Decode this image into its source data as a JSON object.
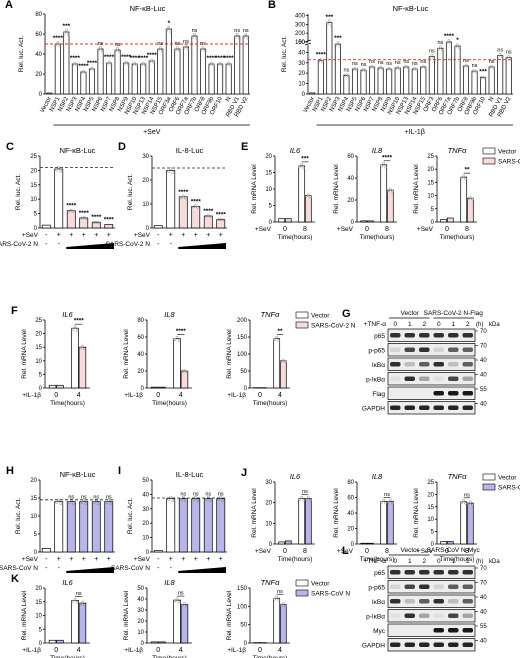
{
  "colors": {
    "vector_fill": "#ffffff",
    "covid2_fill": "#f7dada",
    "covid1_fill": "#b7b5ea",
    "dash_red": "#d9302c",
    "dash_black": "#222222",
    "dot": "#888888"
  },
  "chart_data": [
    {
      "id": "A",
      "panel": "A",
      "type": "bar",
      "title": "NF-κB-Luc",
      "ylabel": "Rel. luc. Act.",
      "ylim": [
        0,
        80
      ],
      "yticks": [
        "0",
        "20",
        "40",
        "60",
        "80"
      ],
      "categories": [
        "Vector",
        "NSP1",
        "NSP2",
        "NSP3",
        "NSP4",
        "NSP5",
        "NSP6",
        "NSP7",
        "NSP8",
        "NSP9",
        "NSP10",
        "NSP13",
        "NSP14",
        "NSP15",
        "ORF3a",
        "ORF6",
        "ORF7a",
        "ORF7b",
        "ORF8",
        "ORF9b",
        "ORF10",
        "N",
        "RBD V1",
        "RBD V2"
      ],
      "values": [
        1,
        50,
        62,
        30,
        22,
        25,
        45,
        31,
        44,
        31,
        30,
        30,
        33,
        45,
        65,
        45,
        47,
        58,
        45,
        30,
        30,
        30,
        58,
        58
      ],
      "sig": [
        "",
        "****",
        "***",
        "****",
        "****",
        "****",
        "ns",
        "****",
        "ns",
        "****",
        "****",
        "****",
        "****",
        "ns",
        "*",
        "ns",
        "ns",
        "ns",
        "ns",
        "****",
        "****",
        "****",
        "ns",
        "ns"
      ],
      "dashline": 50,
      "dashcolor": "red",
      "xlabel_group": "+SeV"
    },
    {
      "id": "B",
      "panel": "B",
      "type": "bar",
      "title": "NF-κB-Luc",
      "ylabel": "Rel. luc. Act.",
      "broken_axis": true,
      "yticks": [
        "0",
        "10",
        "20",
        "30",
        "40",
        "50",
        "100",
        "200",
        "300",
        "400"
      ],
      "categories": [
        "Vector",
        "NSP1",
        "NSP2",
        "NSP3",
        "NSP4",
        "NSP5",
        "NSP6",
        "NSP7",
        "NSP8",
        "NSP9",
        "NSP10",
        "NSP13",
        "NSP14",
        "NSP15",
        "ORF3",
        "ORF6",
        "ORF7a",
        "ORF7b",
        "ORF8",
        "ORF9b",
        "ORF10",
        "N",
        "RBD V1",
        "RBD V2"
      ],
      "values": [
        1,
        32,
        320,
        48,
        18,
        24,
        23,
        26,
        25,
        24,
        25,
        26,
        24,
        26,
        36,
        44,
        50,
        54,
        27,
        22,
        16,
        26,
        37,
        35
      ],
      "sig": [
        "",
        "****",
        "***",
        "***",
        "ns",
        "ns",
        "ns",
        "ns",
        "ns",
        "ns",
        "ns",
        "ns",
        "ns",
        "ns",
        "ns",
        "ns",
        "****",
        "*",
        "ns",
        "ns",
        "***",
        "ns",
        "ns",
        "ns"
      ],
      "dashline": 33,
      "dashcolor": "red",
      "xlabel_group": "+IL-1β"
    },
    {
      "id": "C",
      "panel": "C",
      "type": "bar",
      "title": "NF-κB-Luc",
      "ylabel": "Rel. luc. Act.",
      "ylim": [
        0,
        25
      ],
      "yticks": [
        "0",
        "5",
        "10",
        "15",
        "20",
        "25"
      ],
      "categories": [
        "1",
        "2",
        "3",
        "4",
        "5",
        "6"
      ],
      "values": [
        1,
        20.5,
        6,
        3.5,
        2,
        1.2
      ],
      "fill": [
        "v",
        "v",
        "c",
        "c",
        "c",
        "c"
      ],
      "sig": [
        "",
        "",
        "****",
        "****",
        "****",
        "****"
      ],
      "dashline": 21,
      "dashcolor": "black",
      "rows": [
        {
          "label": "+SeV",
          "marks": [
            "-",
            "+",
            "+",
            "+",
            "+",
            "+"
          ]
        },
        {
          "label": "SARS-CoV-2 N",
          "marks": [
            "-",
            "-",
            "+",
            "+",
            "+",
            "+"
          ]
        }
      ]
    },
    {
      "id": "D",
      "panel": "D",
      "type": "bar",
      "title": "IL-8-Luc",
      "ylabel": "Rel. luc. Act.",
      "ylim": [
        0,
        30
      ],
      "yticks": [
        "0",
        "10",
        "20",
        "30"
      ],
      "categories": [
        "1",
        "2",
        "3",
        "4",
        "5",
        "6"
      ],
      "values": [
        1,
        24,
        13,
        9,
        5,
        3.5
      ],
      "fill": [
        "v",
        "v",
        "c",
        "c",
        "c",
        "c"
      ],
      "sig": [
        "",
        "",
        "****",
        "****",
        "****",
        "****"
      ],
      "dashline": 25,
      "dashcolor": "black",
      "rows": [
        {
          "label": "+SeV",
          "marks": [
            "-",
            "+",
            "+",
            "+",
            "+",
            "+"
          ]
        },
        {
          "label": "SARS-CoV-2 N",
          "marks": [
            "-",
            "-",
            "+",
            "+",
            "+",
            "+"
          ]
        }
      ]
    },
    {
      "id": "E1",
      "panel": "E",
      "type": "bar",
      "title": "IL6",
      "ylabel": "Rel. mRNA Level",
      "ylim": [
        0,
        20
      ],
      "yticks": [
        "0",
        "5",
        "10",
        "15",
        "20"
      ],
      "xticks": [
        "0",
        "8"
      ],
      "xlabel": "Time(hours)",
      "treat": "+SeV",
      "values": [
        [
          1,
          1
        ],
        [
          17,
          8
        ]
      ],
      "sig": [
        "",
        "***"
      ],
      "fills": [
        "v",
        "c"
      ]
    },
    {
      "id": "E2",
      "panel": "",
      "type": "bar",
      "title": "IL8",
      "ylabel": "Rel. mRNA Level",
      "ylim": [
        0,
        60
      ],
      "yticks": [
        "0",
        "20",
        "40",
        "60"
      ],
      "xticks": [
        "0",
        "8"
      ],
      "xlabel": "Time(hours)",
      "treat": "+SeV",
      "values": [
        [
          1,
          1
        ],
        [
          52,
          29
        ]
      ],
      "sig": [
        "",
        "****"
      ],
      "fills": [
        "v",
        "c"
      ]
    },
    {
      "id": "E3",
      "panel": "",
      "type": "bar",
      "title": "TNFα",
      "ylabel": "Rel. mRNA Level",
      "ylim": [
        0,
        25
      ],
      "yticks": [
        "0",
        "5",
        "10",
        "15",
        "20",
        "25"
      ],
      "xticks": [
        "0",
        "8"
      ],
      "xlabel": "Time(hours)",
      "treat": "+SeV",
      "values": [
        [
          1,
          1.5
        ],
        [
          17,
          9
        ]
      ],
      "sig": [
        "",
        "**"
      ],
      "fills": [
        "v",
        "c"
      ],
      "legend": [
        "Vector",
        "SARS-CoV-2 N"
      ]
    },
    {
      "id": "F1",
      "panel": "F",
      "type": "bar",
      "title": "IL6",
      "ylabel": "Rel. mRNA Level",
      "ylim": [
        0,
        25
      ],
      "yticks": [
        "0",
        "5",
        "10",
        "15",
        "20",
        "25"
      ],
      "xticks": [
        "0",
        "4"
      ],
      "xlabel": "Time(hours)",
      "treat": "+IL-1β",
      "values": [
        [
          1,
          1
        ],
        [
          22,
          15
        ]
      ],
      "sig": [
        "",
        "****"
      ],
      "fills": [
        "v",
        "c"
      ]
    },
    {
      "id": "F2",
      "panel": "",
      "type": "bar",
      "title": "IL8",
      "ylabel": "Rel. mRNA Level",
      "ylim": [
        0,
        80
      ],
      "yticks": [
        "0",
        "20",
        "40",
        "60",
        "80"
      ],
      "xticks": [
        "0",
        "4"
      ],
      "xlabel": "Time(hours)",
      "treat": "+IL-1β",
      "values": [
        [
          1,
          1
        ],
        [
          58,
          20
        ]
      ],
      "sig": [
        "",
        "****"
      ],
      "fills": [
        "v",
        "c"
      ]
    },
    {
      "id": "F3",
      "panel": "",
      "type": "bar",
      "title": "TNFα",
      "ylabel": "Rel. mRNA Level",
      "ylim": [
        0,
        200
      ],
      "yticks": [
        "0",
        "50",
        "100",
        "150",
        "200"
      ],
      "xticks": [
        "0",
        "4"
      ],
      "xlabel": "Time(hours)",
      "treat": "+IL-1β",
      "values": [
        [
          1,
          1
        ],
        [
          145,
          80
        ]
      ],
      "sig": [
        "",
        "**"
      ],
      "fills": [
        "v",
        "c"
      ],
      "legend": [
        "Vector",
        "SARS-CoV-2 N"
      ]
    },
    {
      "id": "H",
      "panel": "H",
      "type": "bar",
      "title": "NF-κB-Luc",
      "ylabel": "Rel. luc. Act.",
      "ylim": [
        0,
        20
      ],
      "yticks": [
        "0",
        "5",
        "10",
        "15",
        "20"
      ],
      "categories": [
        "1",
        "2",
        "3",
        "4",
        "5",
        "6"
      ],
      "values": [
        1,
        14,
        14,
        14,
        14,
        14
      ],
      "fill": [
        "v",
        "v",
        "s",
        "s",
        "s",
        "s"
      ],
      "sig": [
        "",
        "",
        "ns",
        "ns",
        "ns",
        "ns"
      ],
      "dashline": 14.5,
      "dashcolor": "black",
      "rows": [
        {
          "label": "+SeV",
          "marks": [
            "-",
            "+",
            "+",
            "+",
            "+",
            "+"
          ]
        },
        {
          "label": "SARS-CoV N",
          "marks": [
            "-",
            "-",
            "+",
            "+",
            "+",
            "+"
          ]
        }
      ]
    },
    {
      "id": "I",
      "panel": "I",
      "type": "bar",
      "title": "IL-8-Luc",
      "ylabel": "Rel. luc. Act.",
      "ylim": [
        0,
        50
      ],
      "yticks": [
        "0",
        "10",
        "20",
        "30",
        "40",
        "50"
      ],
      "categories": [
        "1",
        "2",
        "3",
        "4",
        "5",
        "6"
      ],
      "values": [
        1,
        37,
        37,
        37,
        37,
        37
      ],
      "fill": [
        "v",
        "v",
        "s",
        "s",
        "s",
        "s"
      ],
      "sig": [
        "",
        "",
        "ns",
        "ns",
        "ns",
        "ns"
      ],
      "dashline": 37.5,
      "dashcolor": "black",
      "rows": [
        {
          "label": "+SeV",
          "marks": [
            "-",
            "+",
            "+",
            "+",
            "+",
            "+"
          ]
        },
        {
          "label": "SARS-CoV N",
          "marks": [
            "-",
            "-",
            "+",
            "+",
            "+",
            "+"
          ]
        }
      ]
    },
    {
      "id": "J1",
      "panel": "J",
      "type": "bar",
      "title": "IL6",
      "ylabel": "Rel. mRNA Level",
      "ylim": [
        0,
        30
      ],
      "yticks": [
        "0",
        "10",
        "20",
        "30"
      ],
      "xticks": [
        "0",
        "8"
      ],
      "xlabel": "Time(hours)",
      "treat": "+SeV",
      "values": [
        [
          1,
          1.5
        ],
        [
          22,
          22
        ]
      ],
      "sig": [
        "",
        "ns"
      ],
      "fills": [
        "v",
        "s"
      ]
    },
    {
      "id": "J2",
      "panel": "",
      "type": "bar",
      "title": "IL8",
      "ylabel": "Rel. mRNA Level",
      "ylim": [
        0,
        80
      ],
      "yticks": [
        "0",
        "20",
        "40",
        "60",
        "80"
      ],
      "xticks": [
        "0",
        "8"
      ],
      "xlabel": "Time(hours)",
      "treat": "+SeV",
      "values": [
        [
          1,
          1
        ],
        [
          55,
          55
        ]
      ],
      "sig": [
        "",
        "ns"
      ],
      "fills": [
        "v",
        "s"
      ]
    },
    {
      "id": "J3",
      "panel": "",
      "type": "bar",
      "title": "TNFα",
      "ylabel": "Rel. mRNA Level",
      "ylim": [
        0,
        25
      ],
      "yticks": [
        "0",
        "5",
        "10",
        "15",
        "20",
        "25"
      ],
      "xticks": [
        "0",
        "8"
      ],
      "xlabel": "Time(hours)",
      "treat": "+SeV",
      "values": [
        [
          1,
          1
        ],
        [
          17,
          16.5
        ]
      ],
      "sig": [
        "",
        "ns"
      ],
      "fills": [
        "v",
        "s"
      ],
      "legend": [
        "Vector",
        "SARS-CoV N"
      ]
    },
    {
      "id": "K1",
      "panel": "K",
      "type": "bar",
      "title": "IL6",
      "ylabel": "Rel. mRNA Level",
      "ylim": [
        0,
        20
      ],
      "yticks": [
        "0",
        "5",
        "10",
        "15",
        "20"
      ],
      "xticks": [
        "0",
        "4"
      ],
      "xlabel": "Time(hours)",
      "treat": "+IL-1β",
      "values": [
        [
          1,
          1
        ],
        [
          15.5,
          14.5
        ]
      ],
      "sig": [
        "",
        "ns"
      ],
      "fills": [
        "v",
        "s"
      ]
    },
    {
      "id": "K2",
      "panel": "",
      "type": "bar",
      "title": "IL8",
      "ylabel": "Rel. mRNA Level",
      "ylim": [
        0,
        50
      ],
      "yticks": [
        "0",
        "10",
        "20",
        "30",
        "40",
        "50"
      ],
      "xticks": [
        "0",
        "4"
      ],
      "xlabel": "Time(hours)",
      "treat": "+IL-1β",
      "values": [
        [
          1,
          1
        ],
        [
          39,
          35
        ]
      ],
      "sig": [
        "",
        "ns"
      ],
      "fills": [
        "v",
        "s"
      ]
    },
    {
      "id": "K3",
      "panel": "",
      "type": "bar",
      "title": "TNFα",
      "ylabel": "Rel. mRNA Level",
      "ylim": [
        0,
        150
      ],
      "yticks": [
        "0",
        "50",
        "100",
        "150"
      ],
      "xticks": [
        "0",
        "4"
      ],
      "xlabel": "Time(hours)",
      "treat": "+IL-1β",
      "values": [
        [
          1,
          1
        ],
        [
          122,
          105
        ]
      ],
      "sig": [
        "",
        "ns"
      ],
      "fills": [
        "v",
        "s"
      ],
      "legend": [
        "Vector",
        "SARS-CoV N"
      ]
    }
  ],
  "blots": [
    {
      "panel": "G",
      "group_left": "Vector",
      "group_right": "SARS-CoV-2 N-Flag",
      "treat": "+TNF-α",
      "times": [
        "0",
        "1",
        "2",
        "0",
        "1",
        "2"
      ],
      "unit": "(h)",
      "kda_label": "kDa",
      "rows": [
        {
          "label": "p65",
          "kda": "70"
        },
        {
          "label": "p-p65",
          "kda": "70"
        },
        {
          "label": "IκBα",
          "kda": "40"
        },
        {
          "label": "p-IκBα",
          "kda": "40"
        },
        {
          "label": "Flag",
          "kda": "55"
        },
        {
          "label": "GAPDH",
          "kda": "40"
        }
      ]
    },
    {
      "panel": "L",
      "group_left": "Vector",
      "group_right": "SARS-CoV N-Myc",
      "treat": "+TNF-α",
      "times": [
        "0",
        "1",
        "2",
        "0",
        "1",
        "2"
      ],
      "unit": "(h)",
      "kda_label": "kDa",
      "rows": [
        {
          "label": "p65",
          "kda": "70"
        },
        {
          "label": "p-p65",
          "kda": "70"
        },
        {
          "label": "IκBα",
          "kda": "40"
        },
        {
          "label": "p-IκBα",
          "kda": "40"
        },
        {
          "label": "Myc",
          "kda": "55"
        },
        {
          "label": "GAPDH",
          "kda": "40"
        }
      ]
    }
  ]
}
